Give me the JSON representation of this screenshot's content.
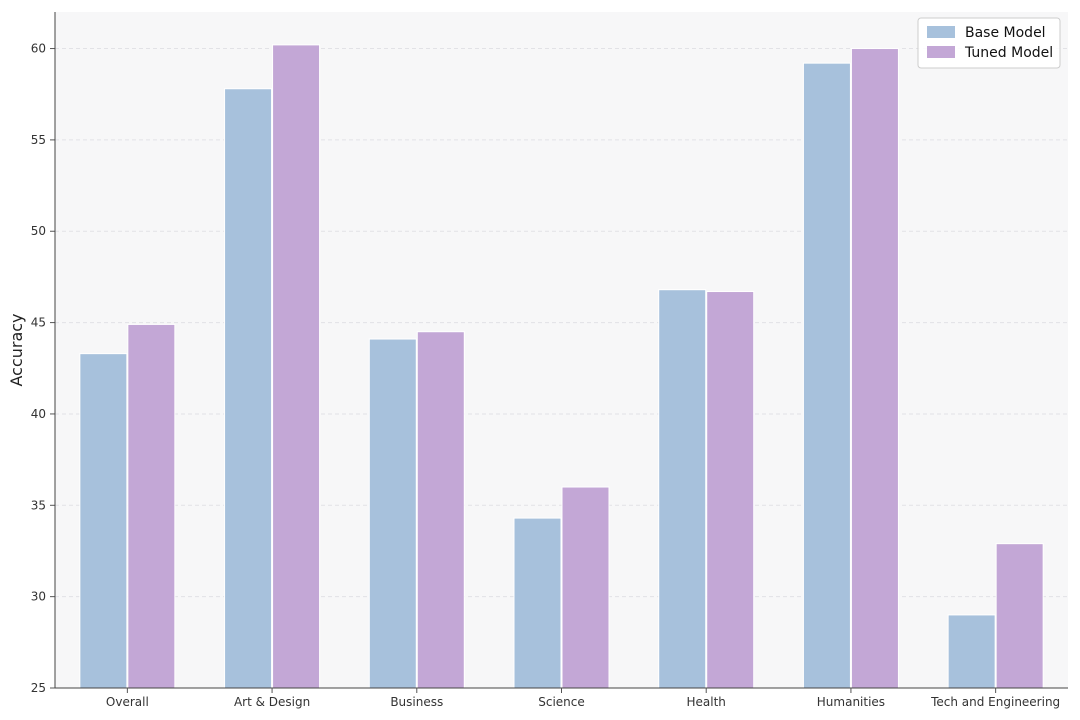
{
  "chart_data": {
    "type": "bar",
    "title": "",
    "xlabel": "",
    "ylabel": "Accuracy",
    "categories": [
      "Overall",
      "Art & Design",
      "Business",
      "Science",
      "Health",
      "Humanities",
      "Tech and Engineering"
    ],
    "series": [
      {
        "name": "Base Model",
        "color": "#a7c1dc",
        "values": [
          43.3,
          57.8,
          44.1,
          34.3,
          46.8,
          59.2,
          29.0
        ]
      },
      {
        "name": "Tuned Model",
        "color": "#c3a7d6",
        "values": [
          44.9,
          60.2,
          44.5,
          36.0,
          46.7,
          60.0,
          32.9
        ]
      }
    ],
    "ylim": [
      25,
      62
    ],
    "yticks": [
      25,
      30,
      35,
      40,
      45,
      50,
      55,
      60
    ],
    "grid": true,
    "legend_position": "top-right"
  }
}
